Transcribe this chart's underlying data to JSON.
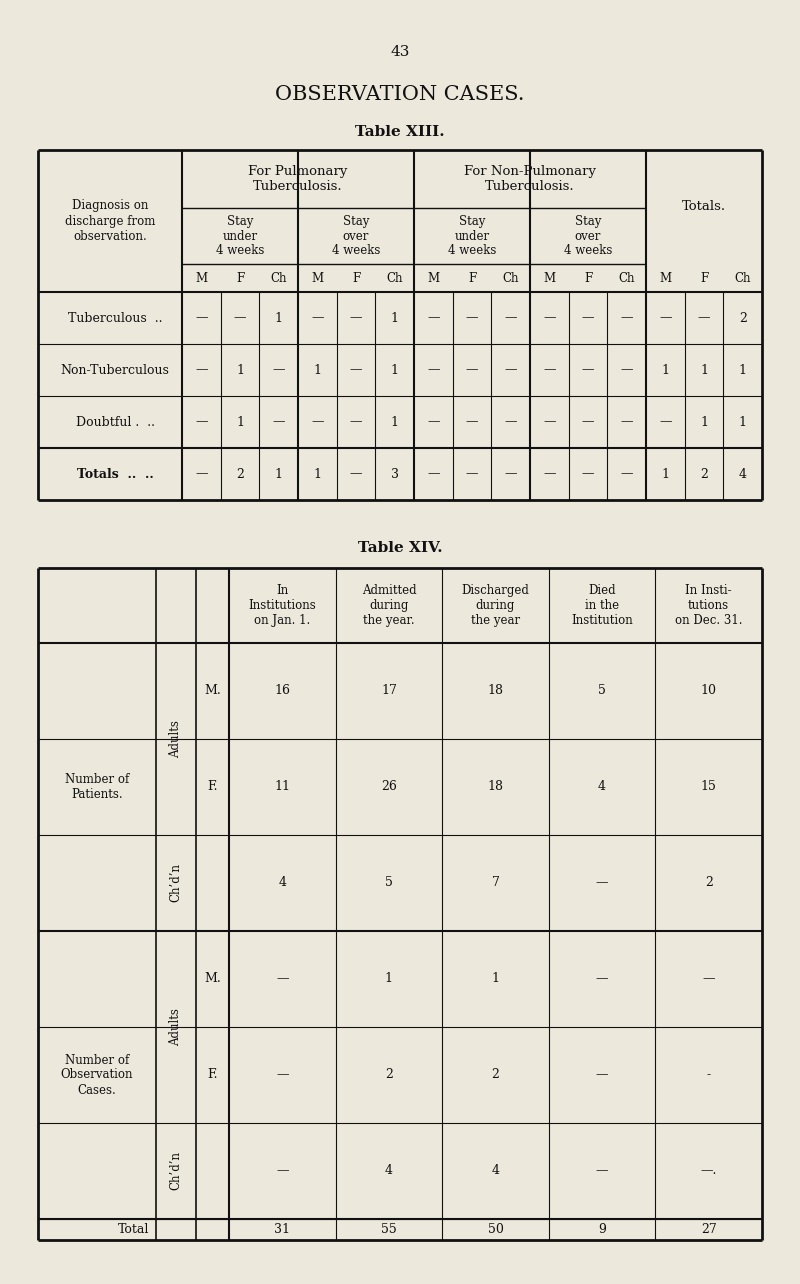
{
  "bg_color": "#ede8dc",
  "page_number": "43",
  "main_title": "OBSERVATION CASES.",
  "table13_title": "Table XIII.",
  "table14_title": "Table XIV.",
  "table13": {
    "row_labels": [
      "Tuberculous  ..",
      "Non-Tuberculous",
      "Doubtful .  ..",
      "Totals  ..  .."
    ],
    "data": [
      [
        "—",
        "—",
        "1",
        "—",
        "—",
        "1",
        "—",
        "—",
        "—",
        "—",
        "—",
        "—",
        "—",
        "—",
        "2"
      ],
      [
        "—",
        "1",
        "—",
        "1",
        "—",
        "1",
        "—",
        "—",
        "—",
        "—",
        "—",
        "—",
        "1",
        "1",
        "1"
      ],
      [
        "—",
        "1",
        "—",
        "—",
        "—",
        "1",
        "—",
        "—",
        "—",
        "—",
        "—",
        "—",
        "—",
        "1",
        "1"
      ],
      [
        "—",
        "2",
        "1",
        "1",
        "—",
        "3",
        "—",
        "—",
        "—",
        "—",
        "—",
        "—",
        "1",
        "2",
        "4"
      ]
    ],
    "is_total": [
      false,
      false,
      false,
      true
    ]
  },
  "table14": {
    "col_headers": [
      "In\nInstitutions\non Jan. 1.",
      "Admitted\nduring\nthe year.",
      "Discharged\nduring\nthe year",
      "Died\nin the\nInstitution",
      "In Insti-\ntutions\non Dec. 31."
    ],
    "row_groups": [
      {
        "group_label": "Number of\nPatients.",
        "rows": [
          {
            "sub_group": "Adults",
            "sub_label": "M.",
            "values": [
              "16",
              "17",
              "18",
              "5",
              "10"
            ]
          },
          {
            "sub_group": "Adults",
            "sub_label": "F.",
            "values": [
              "11",
              "26",
              "18",
              "4",
              "15"
            ]
          },
          {
            "sub_group": "Ch’d’n",
            "sub_label": "",
            "values": [
              "4",
              "5",
              "7",
              "—",
              "2"
            ]
          }
        ]
      },
      {
        "group_label": "Number of\nObservation\nCases.",
        "rows": [
          {
            "sub_group": "Adults",
            "sub_label": "M.",
            "values": [
              "—",
              "1",
              "1",
              "—",
              "—"
            ]
          },
          {
            "sub_group": "Adults",
            "sub_label": "F.",
            "values": [
              "—",
              "2",
              "2",
              "—",
              "-"
            ]
          },
          {
            "sub_group": "Ch’d’n",
            "sub_label": "",
            "values": [
              "—",
              "4",
              "4",
              "—",
              "—."
            ]
          }
        ]
      }
    ],
    "total_row": [
      "31",
      "55",
      "50",
      "9",
      "27"
    ],
    "total_label": "Total"
  }
}
